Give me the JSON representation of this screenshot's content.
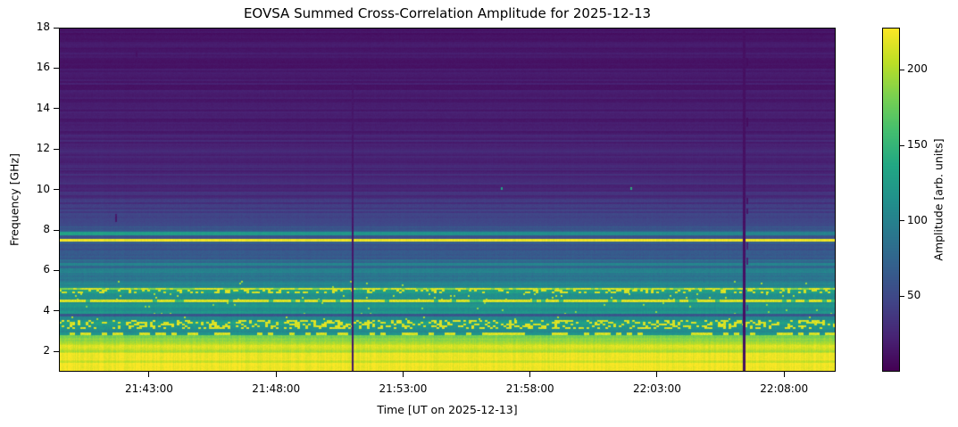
{
  "chart_data": {
    "type": "heatmap",
    "title": "EOVSA Summed Cross-Correlation Amplitude for 2025-12-13",
    "xlabel": "Time [UT on 2025-12-13]",
    "ylabel": "Frequency [GHz]",
    "x_range_ut": [
      "21:39:27",
      "22:10:02"
    ],
    "x_ticks": [
      "21:43:00",
      "21:48:00",
      "21:53:00",
      "21:58:00",
      "22:03:00",
      "22:08:00"
    ],
    "y_range_ghz": [
      1,
      18
    ],
    "y_ticks": [
      2,
      4,
      6,
      8,
      10,
      12,
      14,
      16,
      18
    ],
    "colormap": "viridis",
    "amplitude_range": [
      0,
      228
    ],
    "colorbar": {
      "label": "Amplitude [arb. units]",
      "ticks": [
        50,
        100,
        150,
        200
      ]
    },
    "freq_profile_format": [
      "f_lo_GHz",
      "f_hi_GHz",
      "amp_at_lo",
      "amp_at_hi",
      "row_noise",
      "time_noise",
      "speckle_density",
      "speckle_amp",
      "speckle_run_px",
      "dash_keyed",
      "fade_to_right"
    ],
    "freq_profile": [
      [
        1.0,
        1.44,
        222,
        222,
        4,
        4,
        0,
        0,
        0,
        0,
        1
      ],
      [
        1.44,
        1.56,
        208,
        208,
        5,
        4,
        0,
        0,
        0,
        0,
        1
      ],
      [
        1.56,
        1.92,
        222,
        222,
        4,
        4,
        0,
        0,
        0,
        0,
        1
      ],
      [
        1.92,
        2.06,
        202,
        202,
        8,
        5,
        0,
        0,
        0,
        0,
        1
      ],
      [
        2.06,
        2.38,
        213,
        210,
        7,
        5,
        0,
        0,
        0,
        0,
        1
      ],
      [
        2.38,
        2.62,
        198,
        194,
        7,
        5,
        0,
        0,
        0,
        0,
        1
      ],
      [
        2.62,
        2.8,
        180,
        184,
        8,
        6,
        0,
        0,
        0,
        0,
        1
      ],
      [
        2.8,
        2.94,
        118,
        118,
        6,
        6,
        0.55,
        224,
        6,
        1,
        1
      ],
      [
        2.94,
        3.1,
        108,
        108,
        6,
        6,
        0,
        0,
        0,
        0,
        1
      ],
      [
        3.1,
        3.56,
        124,
        121,
        8,
        8,
        0.32,
        226,
        3,
        0,
        1
      ],
      [
        3.56,
        3.74,
        106,
        106,
        6,
        6,
        0.02,
        212,
        2,
        0,
        1
      ],
      [
        3.74,
        3.88,
        58,
        58,
        5,
        5,
        0,
        0,
        0,
        0,
        1
      ],
      [
        3.88,
        4.42,
        118,
        112,
        7,
        6,
        0.01,
        200,
        2,
        0,
        1
      ],
      [
        4.42,
        4.58,
        148,
        148,
        8,
        8,
        0.78,
        225,
        5,
        1,
        1
      ],
      [
        4.58,
        4.86,
        112,
        110,
        6,
        6,
        0.02,
        215,
        2,
        0,
        1
      ],
      [
        4.86,
        5.04,
        126,
        126,
        7,
        7,
        0.25,
        225,
        3,
        0,
        1
      ],
      [
        5.04,
        5.14,
        185,
        185,
        8,
        8,
        0.6,
        225,
        4,
        1,
        1
      ],
      [
        5.14,
        5.5,
        104,
        100,
        6,
        5,
        0.01,
        205,
        2,
        0,
        1
      ],
      [
        5.5,
        5.88,
        88,
        86,
        6,
        5,
        0,
        0,
        0,
        0,
        1
      ],
      [
        5.88,
        6.12,
        102,
        100,
        6,
        5,
        0,
        0,
        0,
        0,
        1
      ],
      [
        6.12,
        6.26,
        78,
        76,
        7,
        4,
        0,
        0,
        0,
        0,
        1
      ],
      [
        6.26,
        6.38,
        100,
        100,
        6,
        4,
        0,
        0,
        0,
        0,
        1
      ],
      [
        6.38,
        6.55,
        80,
        78,
        7,
        4,
        0,
        0,
        0,
        0,
        1
      ],
      [
        6.55,
        7.3,
        64,
        56,
        7,
        4,
        0,
        0,
        0,
        0,
        1
      ],
      [
        7.3,
        7.45,
        70,
        70,
        5,
        4,
        0,
        0,
        0,
        0,
        1
      ],
      [
        7.45,
        7.56,
        224,
        224,
        2,
        3,
        0,
        0,
        0,
        0,
        1
      ],
      [
        7.56,
        7.76,
        62,
        60,
        6,
        4,
        0,
        0,
        0,
        0,
        1
      ],
      [
        7.76,
        7.93,
        128,
        126,
        5,
        4,
        0,
        0,
        0,
        0,
        0.76
      ],
      [
        7.93,
        8.18,
        66,
        62,
        7,
        4,
        0,
        0,
        0,
        0,
        1
      ],
      [
        8.18,
        9.0,
        50,
        40,
        8,
        3,
        0,
        0,
        0,
        0,
        1
      ],
      [
        9.0,
        9.6,
        38,
        32,
        8,
        3,
        0,
        0,
        0,
        0,
        1
      ],
      [
        9.6,
        11.0,
        30,
        25,
        8,
        2,
        0,
        0,
        0,
        0,
        1
      ],
      [
        11.0,
        14.0,
        24,
        19,
        7,
        2,
        0,
        0,
        0,
        0,
        1
      ],
      [
        14.0,
        17.0,
        18,
        15,
        6,
        2,
        0,
        0,
        0,
        0,
        1
      ],
      [
        17.0,
        18.01,
        14,
        13,
        5,
        2,
        0,
        0,
        0,
        0,
        1
      ]
    ],
    "features": {
      "horizontal_bright_line_ghz": 7.5,
      "events_format": [
        "time_ut",
        "f_lo_GHz",
        "f_hi_GHz",
        "amp",
        "width_px"
      ],
      "events": [
        [
          "21:50:58",
          1.0,
          15.6,
          14,
          2
        ],
        [
          "22:06:22",
          1.0,
          18.0,
          10,
          3
        ],
        [
          "22:06:31",
          16.1,
          16.5,
          8,
          2
        ],
        [
          "22:06:31",
          13.1,
          13.55,
          8,
          2
        ],
        [
          "22:06:31",
          9.3,
          9.6,
          12,
          2
        ],
        [
          "22:06:31",
          8.8,
          9.05,
          14,
          2
        ],
        [
          "22:06:31",
          7.05,
          7.4,
          22,
          2
        ],
        [
          "22:06:31",
          6.3,
          6.62,
          24,
          2
        ],
        [
          "22:06:31",
          4.0,
          4.3,
          48,
          2
        ],
        [
          "21:42:28",
          16.55,
          17.05,
          12,
          2
        ],
        [
          "21:41:40",
          8.4,
          8.8,
          15,
          2
        ],
        [
          "21:56:50",
          10.0,
          10.1,
          135,
          2
        ],
        [
          "22:01:56",
          10.0,
          10.1,
          135,
          2
        ]
      ]
    },
    "viridis_anchors": [
      "#440154",
      "#482475",
      "#414487",
      "#355f8d",
      "#2a788e",
      "#21918c",
      "#22a884",
      "#44bf70",
      "#7ad151",
      "#bddf26",
      "#fde725"
    ],
    "text_color": "#000000",
    "background_color": "#ffffff"
  }
}
